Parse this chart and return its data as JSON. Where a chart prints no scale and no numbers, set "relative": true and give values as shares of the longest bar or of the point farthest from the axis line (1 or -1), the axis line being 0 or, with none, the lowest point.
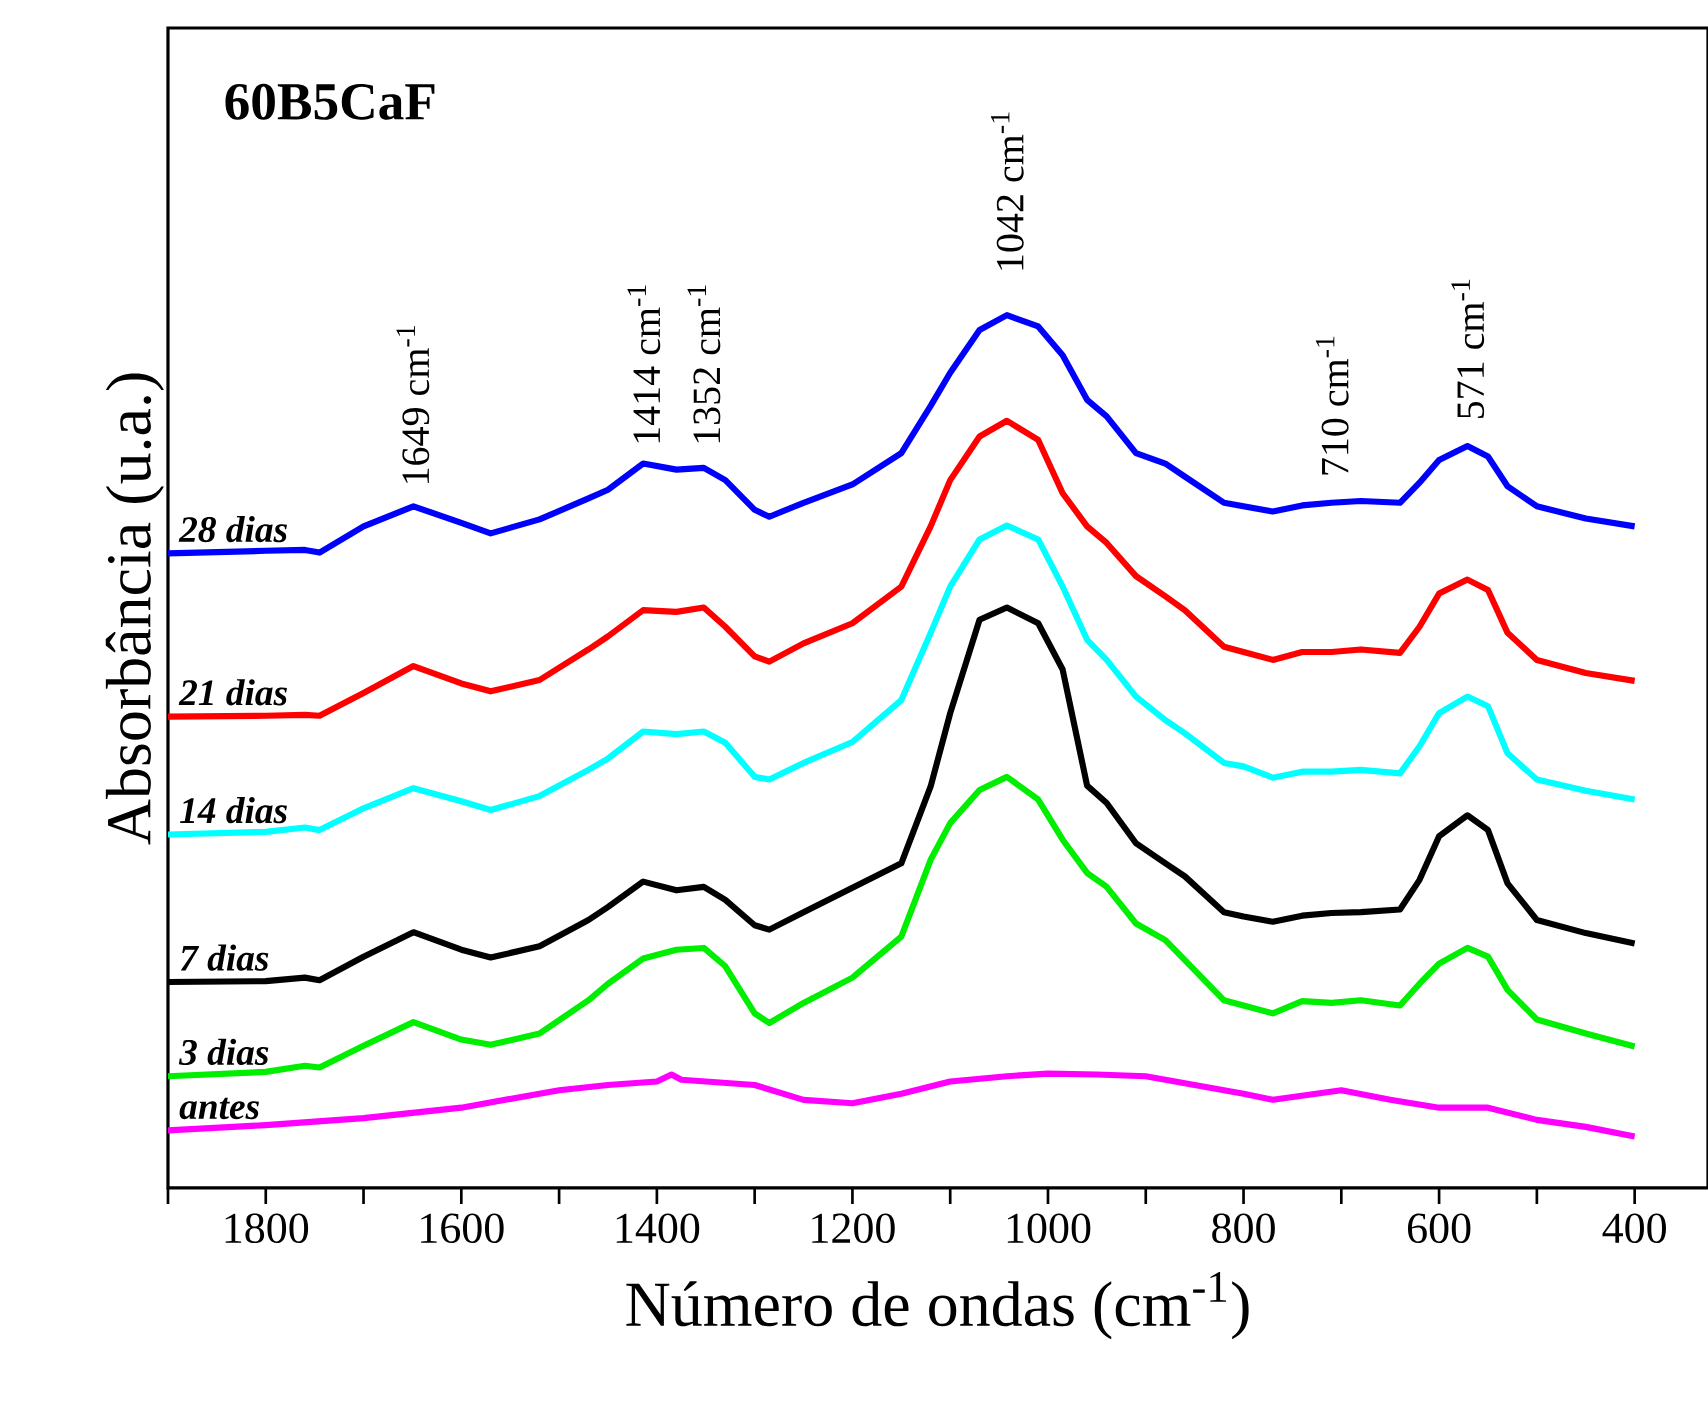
{
  "chart_data": {
    "type": "line",
    "title": "60B5CaF",
    "xlabel": "Número de ondas (cm$^{-1}$)",
    "ylabel": "Absorbância (u.a.)",
    "relative": true,
    "legend": false,
    "marker": "none",
    "line_style": "solid",
    "xlim": [
      1900,
      325
    ],
    "xticks": [
      {
        "value": 1900,
        "label": null
      },
      1800,
      {
        "value": 1700,
        "label": null
      },
      1600,
      {
        "value": 1500,
        "label": null
      },
      1400,
      {
        "value": 1300,
        "label": null
      },
      1200,
      {
        "value": 1100,
        "label": null
      },
      1000,
      {
        "value": 900,
        "label": null
      },
      800,
      {
        "value": 700,
        "label": null
      },
      600,
      {
        "value": 500,
        "label": null
      },
      400
    ],
    "x": [
      1900,
      1800,
      1760,
      1745,
      1700,
      1649,
      1600,
      1570,
      1520,
      1470,
      1450,
      1414,
      1380,
      1352,
      1330,
      1300,
      1285,
      1250,
      1200,
      1150,
      1120,
      1100,
      1070,
      1042,
      1010,
      985,
      960,
      940,
      910,
      880,
      860,
      820,
      800,
      770,
      740,
      710,
      680,
      640,
      620,
      600,
      571,
      550,
      530,
      500,
      450,
      400
    ],
    "series": [
      {
        "name": "28 dias",
        "color": "#0000ff",
        "values": [
          0.727,
          0.73,
          0.731,
          0.728,
          0.758,
          0.781,
          0.762,
          0.75,
          0.766,
          0.79,
          0.8,
          0.83,
          0.823,
          0.825,
          0.811,
          0.777,
          0.769,
          0.785,
          0.806,
          0.842,
          0.896,
          0.934,
          0.983,
          1.0,
          0.987,
          0.954,
          0.903,
          0.884,
          0.842,
          0.83,
          0.815,
          0.785,
          0.781,
          0.775,
          0.782,
          0.785,
          0.787,
          0.785,
          0.808,
          0.834,
          0.85,
          0.838,
          0.804,
          0.781,
          0.767,
          0.758
        ]
      },
      {
        "name": "21 dias",
        "color": "#ff0000",
        "values": [
          0.54,
          0.541,
          0.542,
          0.541,
          0.567,
          0.598,
          0.578,
          0.569,
          0.582,
          0.617,
          0.632,
          0.662,
          0.66,
          0.665,
          0.643,
          0.609,
          0.603,
          0.624,
          0.647,
          0.689,
          0.758,
          0.811,
          0.861,
          0.879,
          0.857,
          0.796,
          0.758,
          0.739,
          0.701,
          0.678,
          0.662,
          0.62,
          0.614,
          0.605,
          0.614,
          0.614,
          0.617,
          0.613,
          0.643,
          0.681,
          0.697,
          0.685,
          0.636,
          0.605,
          0.59,
          0.581
        ]
      },
      {
        "name": "14 dias",
        "color": "#00ffff",
        "values": [
          0.405,
          0.408,
          0.413,
          0.41,
          0.435,
          0.458,
          0.443,
          0.433,
          0.449,
          0.479,
          0.492,
          0.523,
          0.52,
          0.523,
          0.51,
          0.471,
          0.468,
          0.487,
          0.511,
          0.559,
          0.636,
          0.689,
          0.743,
          0.759,
          0.743,
          0.689,
          0.628,
          0.605,
          0.563,
          0.536,
          0.521,
          0.487,
          0.483,
          0.47,
          0.477,
          0.477,
          0.479,
          0.475,
          0.506,
          0.544,
          0.563,
          0.552,
          0.498,
          0.468,
          0.455,
          0.445
        ]
      },
      {
        "name": "7 dias",
        "color": "#000000",
        "values": [
          0.236,
          0.237,
          0.241,
          0.238,
          0.265,
          0.293,
          0.273,
          0.264,
          0.277,
          0.307,
          0.322,
          0.351,
          0.341,
          0.345,
          0.33,
          0.301,
          0.296,
          0.316,
          0.344,
          0.372,
          0.46,
          0.544,
          0.651,
          0.665,
          0.647,
          0.594,
          0.461,
          0.441,
          0.395,
          0.372,
          0.357,
          0.316,
          0.311,
          0.305,
          0.312,
          0.315,
          0.316,
          0.319,
          0.353,
          0.403,
          0.427,
          0.41,
          0.349,
          0.307,
          0.292,
          0.28
        ]
      },
      {
        "name": "3 dias",
        "color": "#00ee00",
        "values": [
          0.128,
          0.133,
          0.14,
          0.138,
          0.163,
          0.19,
          0.17,
          0.164,
          0.177,
          0.215,
          0.234,
          0.263,
          0.273,
          0.275,
          0.254,
          0.2,
          0.189,
          0.212,
          0.241,
          0.288,
          0.376,
          0.418,
          0.456,
          0.471,
          0.445,
          0.399,
          0.361,
          0.345,
          0.303,
          0.284,
          0.261,
          0.215,
          0.209,
          0.2,
          0.214,
          0.212,
          0.215,
          0.209,
          0.234,
          0.257,
          0.275,
          0.265,
          0.227,
          0.193,
          0.177,
          0.162
        ]
      },
      {
        "name": "antes",
        "color": "#ff00ff",
        "x": [
          1900,
          1800,
          1700,
          1600,
          1500,
          1450,
          1400,
          1385,
          1375,
          1300,
          1250,
          1200,
          1150,
          1100,
          1042,
          1000,
          950,
          900,
          850,
          800,
          770,
          700,
          650,
          600,
          550,
          500,
          450,
          400
        ],
        "values": [
          0.066,
          0.072,
          0.08,
          0.092,
          0.112,
          0.118,
          0.122,
          0.13,
          0.124,
          0.118,
          0.101,
          0.097,
          0.108,
          0.122,
          0.128,
          0.131,
          0.13,
          0.128,
          0.118,
          0.108,
          0.101,
          0.112,
          0.101,
          0.092,
          0.092,
          0.078,
          0.07,
          0.059
        ]
      }
    ],
    "annotations": [
      "1649 cm$^{-1}$",
      "1414 cm$^{-1}$",
      "1352 cm$^{-1}$",
      "1042 cm$^{-1}$",
      "710 cm$^{-1}$",
      "571 cm$^{-1}$"
    ]
  }
}
